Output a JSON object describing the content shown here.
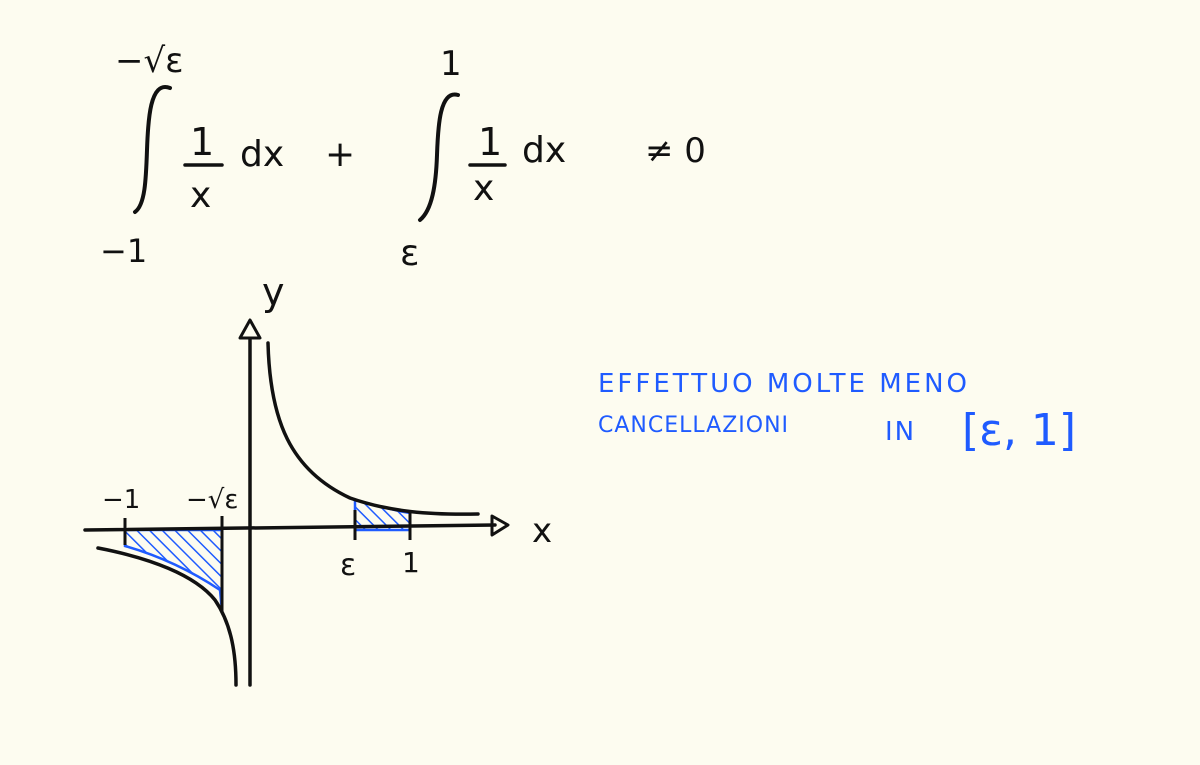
{
  "formula": {
    "integral1": {
      "upper": "−√ε",
      "lower": "−1",
      "integrand_num": "1",
      "integrand_den": "x",
      "differential": "dx"
    },
    "plus": "+",
    "integral2": {
      "upper": "1",
      "lower": "ε",
      "integrand_num": "1",
      "integrand_den": "x",
      "differential": "dx"
    },
    "relation": "≠ 0"
  },
  "graph": {
    "y_label": "y",
    "x_label": "x",
    "tick_labels": {
      "neg_one": "−1",
      "neg_sqrt_eps": "−√ε",
      "eps": "ε",
      "one": "1"
    },
    "curve_function": "1/x",
    "shaded_intervals": [
      {
        "from": "-1",
        "to": "-√ε"
      },
      {
        "from": "ε",
        "to": "1"
      }
    ]
  },
  "annotation": {
    "line1": "EFFETTUO MOLTE MENO",
    "line2": "CANCELLAZIONI",
    "in": "IN",
    "interval": "[ε, 1]"
  },
  "colors": {
    "ink": "#111111",
    "highlight": "#1f5bff",
    "paper": "#fdfcf0"
  }
}
